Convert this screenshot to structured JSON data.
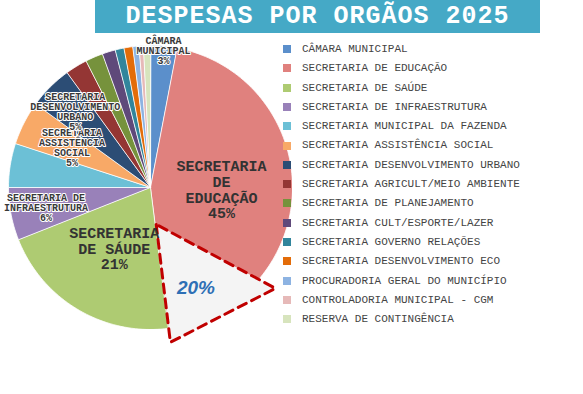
{
  "chart_data": {
    "type": "pie",
    "title": "DESPESAS POR ORGÃOS 2025",
    "categories": [
      "CÂMARA MUNICIPAL",
      "SECRETARIA DE EDUCAÇÃO",
      "SECRETARIA DE SAÚDE",
      "SECRETARIA DE INFRAESTRUTURA",
      "SECRETARIA MUNICIPAL DA FAZENDA",
      "SECRETARIA ASSISTÊNCIA SOCIAL",
      "SECRETARIA DESENVOLVIMENTO URBANO",
      "SECRETARIA AGRICULT/MEIO AMBIENTE",
      "SECRETARIA DE PLANEJAMENTO",
      "SECRETARIA CULT/ESPORTE/LAZER",
      "SECRETARIA GOVERNO RELAÇÕES",
      "SECRETARIA DESENVOLVIMENTO ECO",
      "PROCURADORIA GERAL DO MUNICÍPIO",
      "CONTROLADORIA MUNICIPAL - CGM",
      "RESERVA DE CONTINGÊNCIA"
    ],
    "values": [
      3,
      45,
      21,
      6,
      5,
      5,
      5,
      2.5,
      2,
      1.5,
      1,
      1,
      0.7,
      0.5,
      0.8
    ],
    "value_labels": [
      "3%",
      "45%",
      "21%",
      "6%",
      null,
      "5%",
      "5%",
      null,
      null,
      null,
      null,
      null,
      null,
      null,
      null
    ],
    "slice_labels": [
      "CÂMARA\nMUNICIPAL",
      "SECRETARIA\nDE\nEDUCAÇÃO",
      "SECRETARIA\nDE SÁUDE",
      "SECRETARIA DE\nINFRAESTRUTURA",
      null,
      "SECRETARIA\nASSISTÊNCIA\nSOCIAL",
      "SECRETARIA\nDESENVOLVIMENTO\nURBANO",
      null,
      null,
      null,
      null,
      null,
      null,
      null,
      null
    ],
    "colors": [
      "#5b8fcb",
      "#e0817e",
      "#aecb72",
      "#9981b9",
      "#6cc0d6",
      "#f8a967",
      "#2c4d75",
      "#943634",
      "#76923c",
      "#5f497a",
      "#31859c",
      "#e36c09",
      "#8db3e2",
      "#e6b9b8",
      "#d7e4bd"
    ],
    "annotations": [
      {
        "text": "20%"
      }
    ],
    "data_labels": true,
    "legend": "right",
    "tick_labels": false
  }
}
